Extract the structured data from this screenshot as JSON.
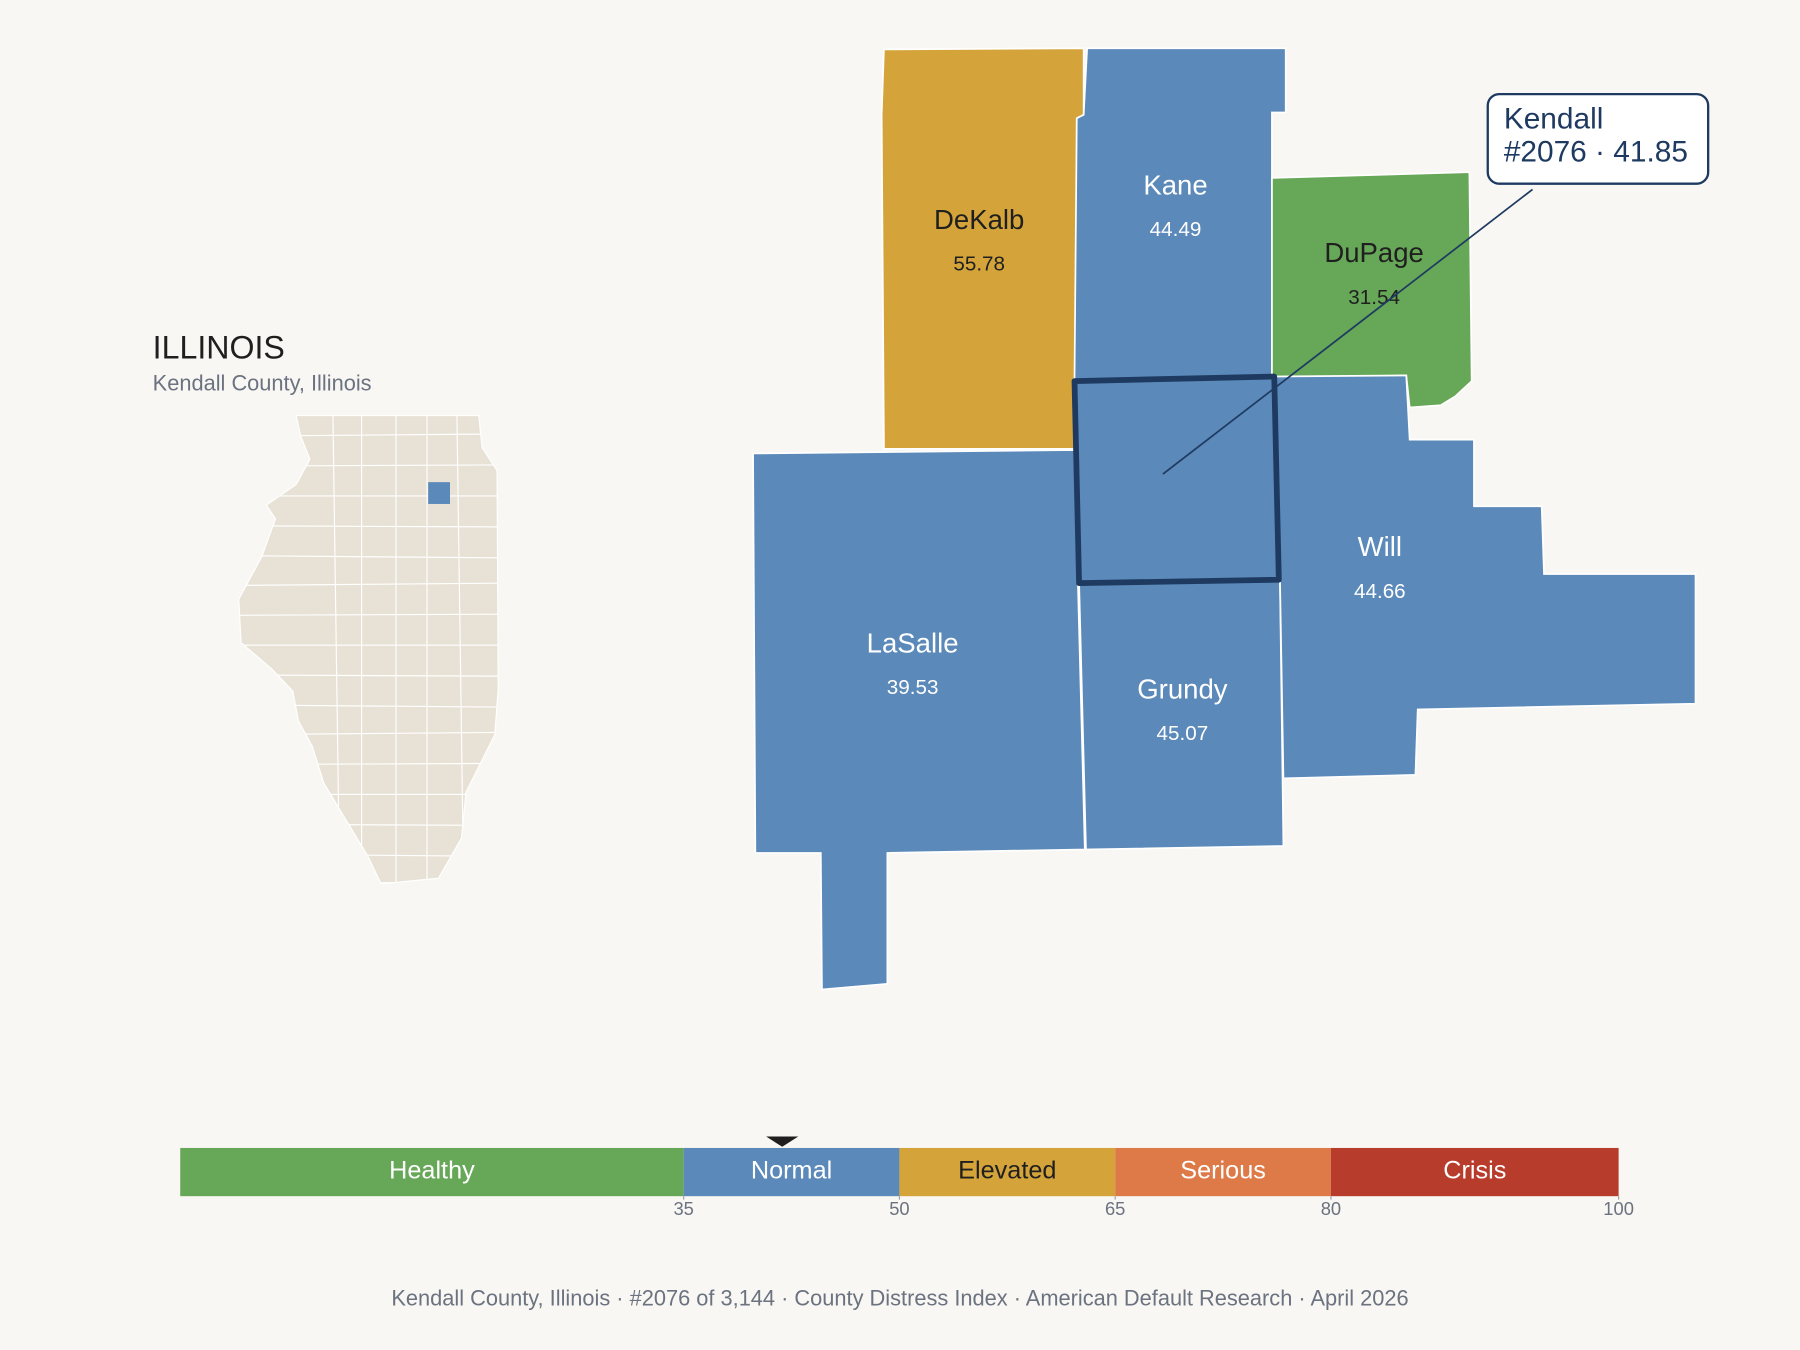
{
  "state": {
    "title": "ILLINOIS",
    "subtitle": "Kendall County, Illinois"
  },
  "counties": [
    {
      "name": "DeKalb",
      "value": 55.78
    },
    {
      "name": "Kane",
      "value": 44.49
    },
    {
      "name": "DuPage",
      "value": 31.54
    },
    {
      "name": "LaSalle",
      "value": 39.53
    },
    {
      "name": "Grundy",
      "value": 45.07
    },
    {
      "name": "Will",
      "value": 44.66
    }
  ],
  "callout": {
    "name": "Kendall",
    "detail": "#2076 · 41.85",
    "value": 41.85
  },
  "scale": {
    "lim": [
      0,
      100
    ],
    "ticks": [
      35,
      50,
      65,
      80,
      100
    ],
    "bands": [
      {
        "label": "Healthy",
        "color": "#67a758"
      },
      {
        "label": "Normal",
        "color": "#5b89b9"
      },
      {
        "label": "Elevated",
        "color": "#d4a43a"
      },
      {
        "label": "Serious",
        "color": "#dd7a48"
      },
      {
        "label": "Crisis",
        "color": "#b83c2c"
      }
    ]
  },
  "footer": "Kendall County, Illinois  ·  #2076 of 3,144  ·  County Distress Index  ·  American Default Research  ·  April 2026"
}
